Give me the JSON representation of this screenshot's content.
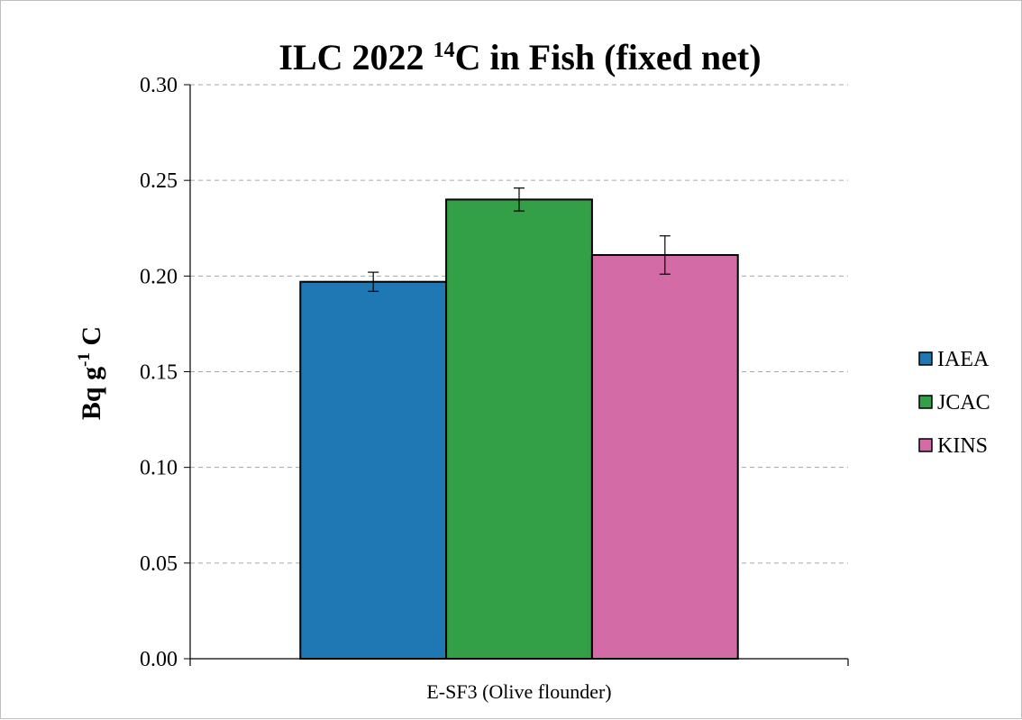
{
  "chart_data": {
    "type": "bar",
    "title": {
      "prefix": "ILC 2022 ",
      "superscript": "14",
      "suffix": "C in Fish (fixed net)"
    },
    "ylabel": {
      "prefix": "Bq g",
      "superscript": "-1",
      "suffix": " C"
    },
    "xlabel": "",
    "categories": [
      "E-SF3 (Olive flounder)"
    ],
    "ylim": [
      0,
      0.3
    ],
    "yticks": [
      0.0,
      0.05,
      0.1,
      0.15,
      0.2,
      0.25,
      0.3
    ],
    "ytick_labels": [
      "0.00",
      "0.05",
      "0.10",
      "0.15",
      "0.20",
      "0.25",
      "0.30"
    ],
    "grid": true,
    "legend_position": "right",
    "series": [
      {
        "name": "IAEA",
        "values": [
          0.197
        ],
        "error": [
          0.005
        ],
        "color": "#1f77b4"
      },
      {
        "name": "JCAC",
        "values": [
          0.24
        ],
        "error": [
          0.006
        ],
        "color": "#33a047"
      },
      {
        "name": "KINS",
        "values": [
          0.211
        ],
        "error": [
          0.01
        ],
        "color": "#d36ba6"
      }
    ]
  }
}
